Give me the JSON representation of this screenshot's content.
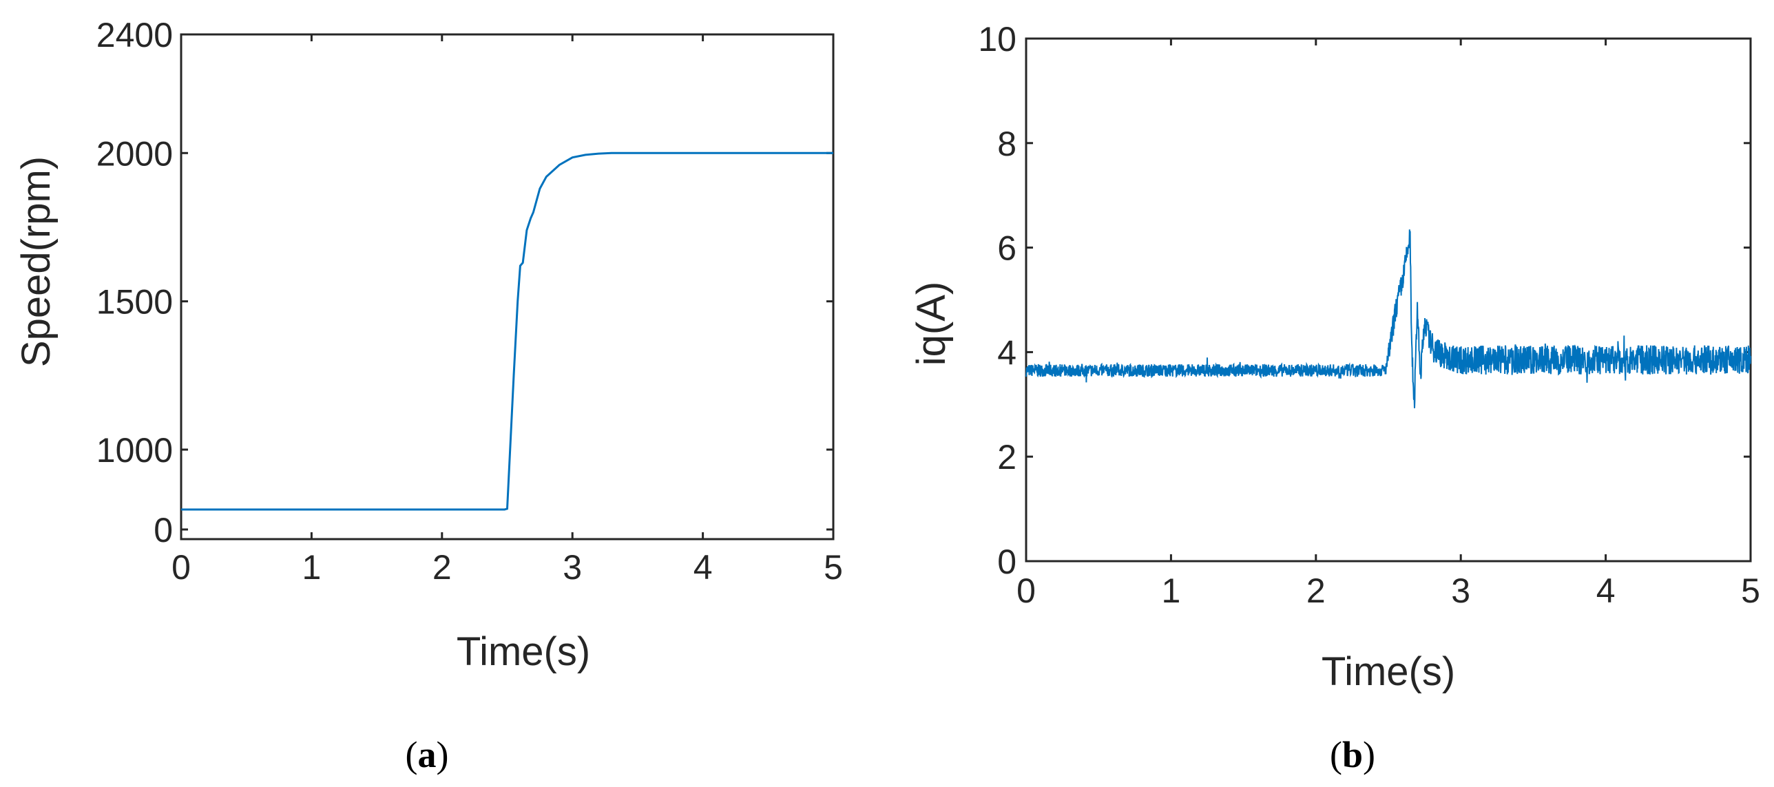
{
  "colors": {
    "line": "#0072bd",
    "axis": "#262626",
    "background": "#ffffff"
  },
  "panels": [
    {
      "caption_open": "(",
      "caption_letter": "a",
      "caption_close": ")"
    },
    {
      "caption_open": "(",
      "caption_letter": "b",
      "caption_close": ")"
    }
  ],
  "chart_data": [
    {
      "type": "line",
      "title": "",
      "xlabel": "Time(s)",
      "ylabel": "Speed(rpm)",
      "xlim": [
        0,
        5
      ],
      "ylim": [
        0,
        2400
      ],
      "y_axis_note": "nonlinear (broken) y scale: 0 tick sits 0.22 of the way from the 1000 tick toward the axis bottom",
      "xticks": [
        "0",
        "1",
        "2",
        "3",
        "4",
        "5"
      ],
      "yticks": [
        "0",
        "1000",
        "1500",
        "2000",
        "2400"
      ],
      "grid": false,
      "legend": "none",
      "series": [
        {
          "x": [
            0,
            2.48,
            2.5,
            2.55,
            2.58,
            2.6,
            2.62,
            2.65,
            2.68,
            2.7,
            2.75,
            2.8,
            2.9,
            3.0,
            3.1,
            3.2,
            3.3,
            3.5,
            4.0,
            5.0
          ],
          "y": [
            800,
            800,
            830,
            1250,
            1500,
            1620,
            1630,
            1740,
            1780,
            1800,
            1880,
            1920,
            1960,
            1985,
            1994,
            1998,
            2000,
            2000,
            2000,
            2000
          ]
        }
      ]
    },
    {
      "type": "line",
      "title": "",
      "xlabel": "Time(s)",
      "ylabel": "iq(A)",
      "xlim": [
        0,
        5
      ],
      "ylim": [
        0,
        10
      ],
      "xticks": [
        "0",
        "1",
        "2",
        "3",
        "4",
        "5"
      ],
      "yticks": [
        "0",
        "2",
        "4",
        "6",
        "8",
        "10"
      ],
      "grid": false,
      "legend": "none",
      "noise_note": "signal has high-frequency ripple of about ±0.15 A before the step and about ±0.3 A after it",
      "series": [
        {
          "x": [
            0,
            2.48,
            2.5,
            2.55,
            2.6,
            2.63,
            2.65,
            2.66,
            2.68,
            2.7,
            2.72,
            2.75,
            2.8,
            2.9,
            3.0,
            4.0,
            5.0
          ],
          "y": [
            3.65,
            3.65,
            3.9,
            4.8,
            5.4,
            5.9,
            6.2,
            4.2,
            3.0,
            4.9,
            3.5,
            4.6,
            4.1,
            3.9,
            3.85,
            3.85,
            3.85
          ]
        }
      ]
    }
  ]
}
